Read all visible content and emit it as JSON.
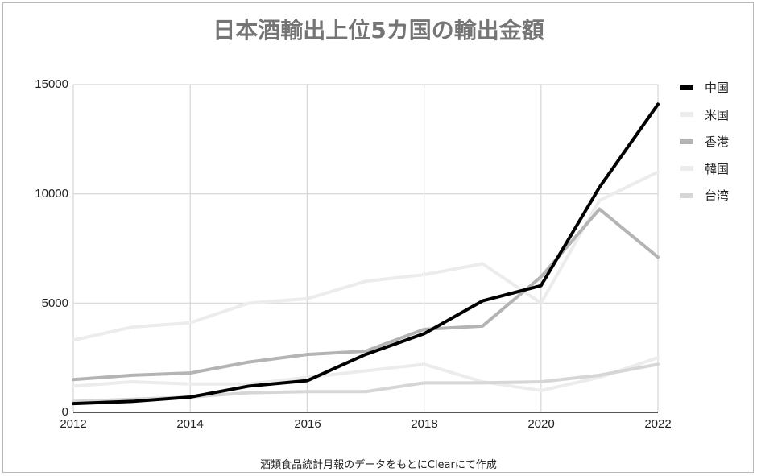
{
  "title": "日本酒輸出上位5カ国の輸出金額",
  "footnote": "酒類食品統計月報のデータをもとにClearにて作成",
  "y_axis": {
    "ticks": [
      "15000",
      "10000",
      "5000",
      "0"
    ]
  },
  "x_axis": {
    "ticks": [
      "2012",
      "2014",
      "2016",
      "2018",
      "2020",
      "2022"
    ]
  },
  "legend": [
    {
      "label": "中国",
      "color": "#000000"
    },
    {
      "label": "米国",
      "color": "#ececec"
    },
    {
      "label": "香港",
      "color": "#b4b4b4"
    },
    {
      "label": "韓国",
      "color": "#ececec"
    },
    {
      "label": "台湾",
      "color": "#d6d6d6"
    }
  ],
  "chart_data": {
    "type": "line",
    "title": "日本酒輸出上位5カ国の輸出金額",
    "xlabel": "",
    "ylabel": "",
    "x": [
      2012,
      2013,
      2014,
      2015,
      2016,
      2017,
      2018,
      2019,
      2020,
      2021,
      2022
    ],
    "ylim": [
      0,
      15000
    ],
    "yticks": [
      0,
      5000,
      10000,
      15000
    ],
    "xticks": [
      2012,
      2014,
      2016,
      2018,
      2020,
      2022
    ],
    "grid": true,
    "legend_position": "right",
    "series": [
      {
        "name": "中国",
        "color": "#000000",
        "width": 4,
        "values": [
          400,
          500,
          700,
          1200,
          1450,
          2650,
          3600,
          5100,
          5800,
          10300,
          14100
        ]
      },
      {
        "name": "米国",
        "color": "#ececec",
        "width": 4,
        "values": [
          3300,
          3900,
          4100,
          5000,
          5200,
          6000,
          6300,
          6800,
          5000,
          9700,
          11000
        ]
      },
      {
        "name": "香港",
        "color": "#b4b4b4",
        "width": 4,
        "values": [
          1500,
          1700,
          1800,
          2300,
          2650,
          2800,
          3800,
          3950,
          6200,
          9300,
          7100
        ]
      },
      {
        "name": "韓国",
        "color": "#ececec",
        "width": 4,
        "values": [
          1200,
          1400,
          1300,
          1300,
          1600,
          1900,
          2200,
          1400,
          1000,
          1600,
          2500
        ]
      },
      {
        "name": "台湾",
        "color": "#d6d6d6",
        "width": 4,
        "values": [
          500,
          600,
          700,
          900,
          950,
          950,
          1350,
          1350,
          1400,
          1700,
          2200
        ]
      }
    ]
  }
}
